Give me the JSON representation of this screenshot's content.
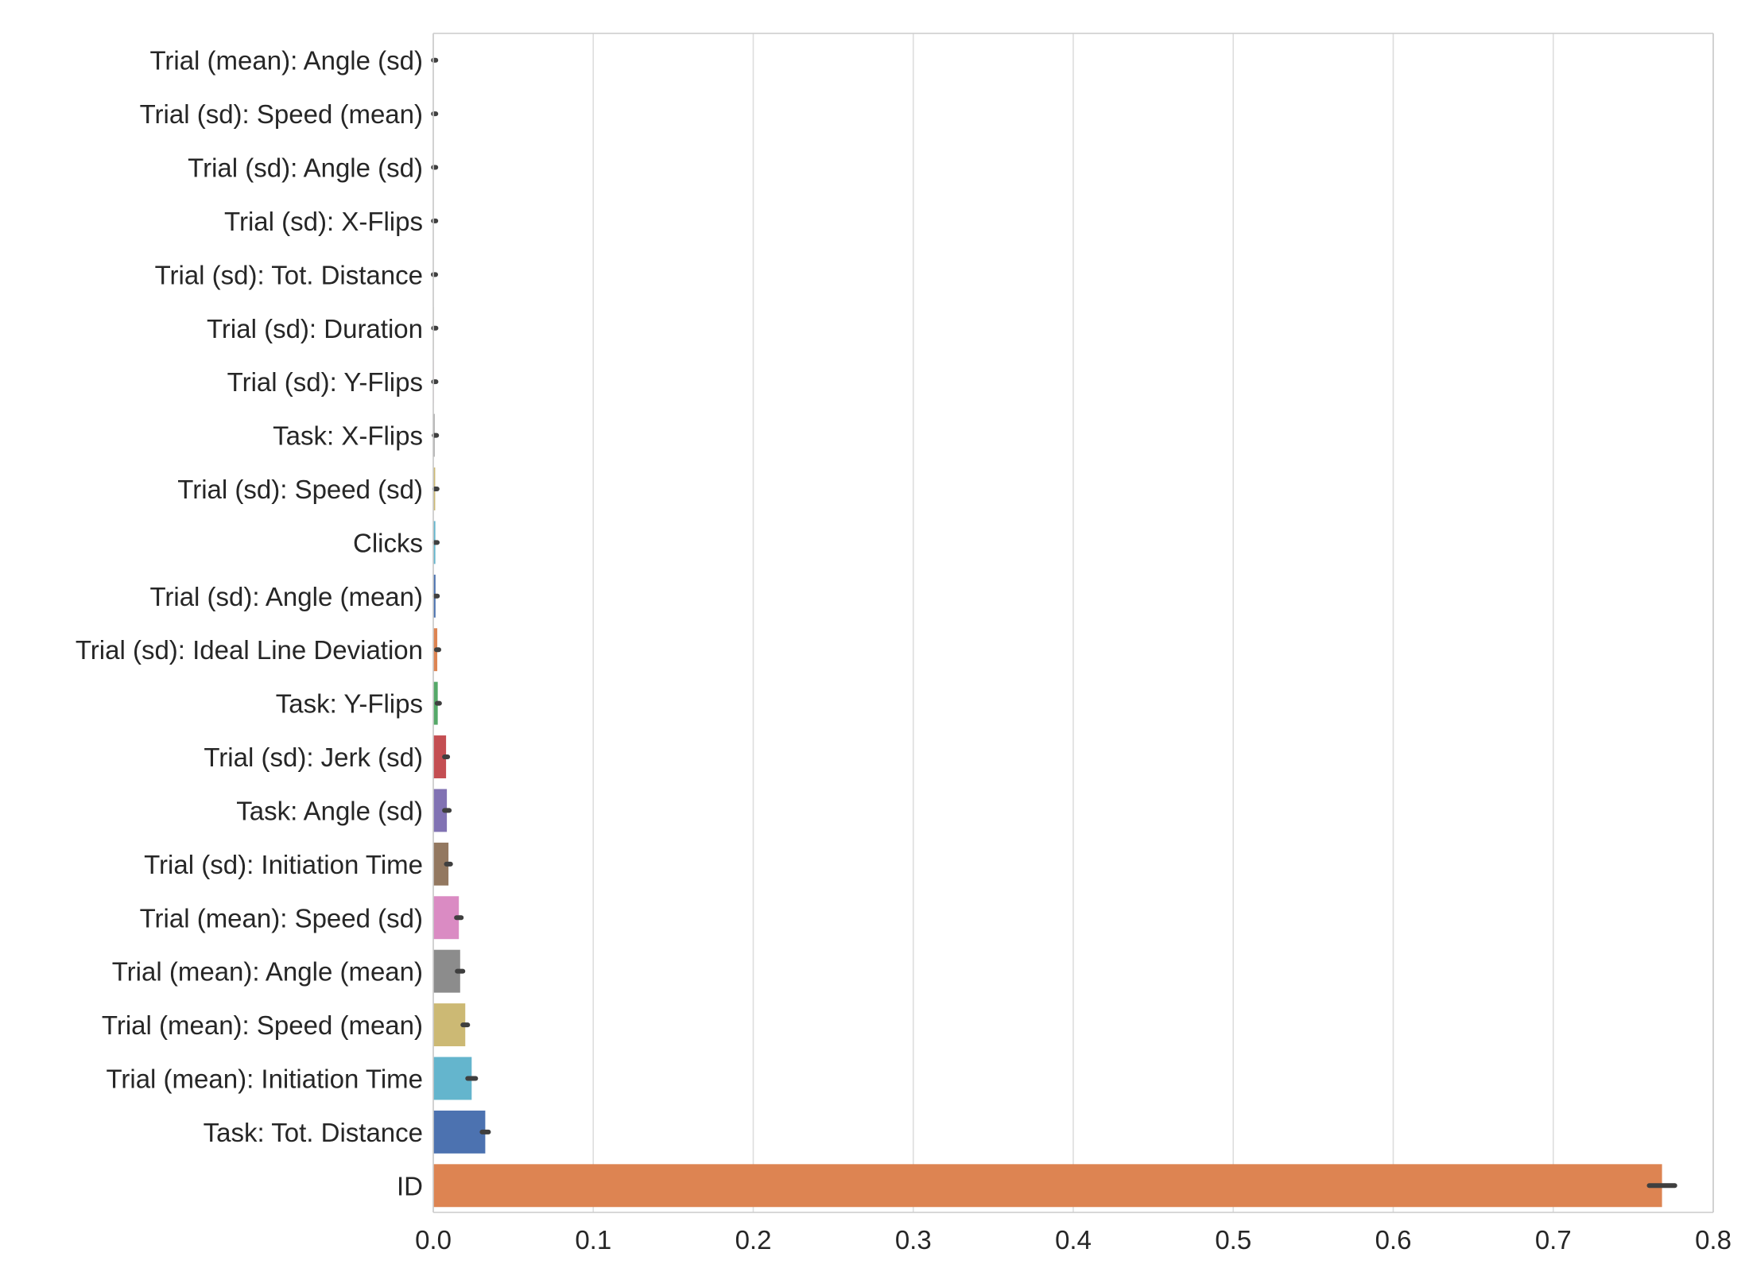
{
  "chart_data": {
    "type": "bar",
    "orientation": "horizontal",
    "title": "",
    "xlabel": "",
    "ylabel": "",
    "xlim": [
      0,
      0.8
    ],
    "xticks": [
      "0.0",
      "0.1",
      "0.2",
      "0.3",
      "0.4",
      "0.5",
      "0.6",
      "0.7",
      "0.8"
    ],
    "grid": "vertical",
    "categories": [
      "Trial (mean): Angle (sd)",
      "Trial (sd): Speed (mean)",
      "Trial (sd): Angle (sd)",
      "Trial (sd): X-Flips",
      "Trial (sd): Tot. Distance",
      "Trial (sd): Duration",
      "Trial (sd): Y-Flips",
      "Task: X-Flips",
      "Trial (sd): Speed (sd)",
      "Clicks",
      "Trial (sd): Angle (mean)",
      "Trial (sd): Ideal Line Deviation",
      "Task: Y-Flips",
      "Trial (sd): Jerk (sd)",
      "Task: Angle (sd)",
      "Trial (sd): Initiation Time",
      "Trial (mean): Speed (sd)",
      "Trial (mean): Angle (mean)",
      "Trial (mean): Speed (mean)",
      "Trial (mean): Initiation Time",
      "Task: Tot. Distance",
      "ID"
    ],
    "values": [
      0.0002,
      0.0002,
      0.0002,
      0.0002,
      0.0001,
      0.0003,
      0.0003,
      0.0008,
      0.0012,
      0.0013,
      0.0014,
      0.0025,
      0.0028,
      0.008,
      0.0085,
      0.0095,
      0.016,
      0.0168,
      0.02,
      0.024,
      0.0325,
      0.768
    ],
    "error_low": [
      0.0001,
      0.0001,
      0.0001,
      0.0001,
      0.0,
      0.0002,
      0.0002,
      0.0006,
      0.0009,
      0.001,
      0.0011,
      0.002,
      0.0024,
      0.007,
      0.007,
      0.0082,
      0.0145,
      0.015,
      0.0185,
      0.0215,
      0.0305,
      0.76
    ],
    "error_high": [
      0.0003,
      0.0003,
      0.0003,
      0.0003,
      0.0002,
      0.0004,
      0.0004,
      0.001,
      0.0015,
      0.0016,
      0.0017,
      0.003,
      0.0032,
      0.009,
      0.01,
      0.0108,
      0.0175,
      0.0185,
      0.0215,
      0.0265,
      0.0345,
      0.776
    ],
    "colors": [
      "#4C72B0",
      "#DD8452",
      "#55A868",
      "#C44E52",
      "#8172B3",
      "#937860",
      "#DA8BC3",
      "#8C8C8C",
      "#CCB974",
      "#64B5CD",
      "#4C72B0",
      "#DD8452",
      "#55A868",
      "#C44E52",
      "#8172B3",
      "#937860",
      "#DA8BC3",
      "#8C8C8C",
      "#CCB974",
      "#64B5CD",
      "#4C72B0",
      "#DD8452"
    ],
    "grid_color": "#DDDDDD",
    "error_bar_color": "#3F3F3F"
  }
}
